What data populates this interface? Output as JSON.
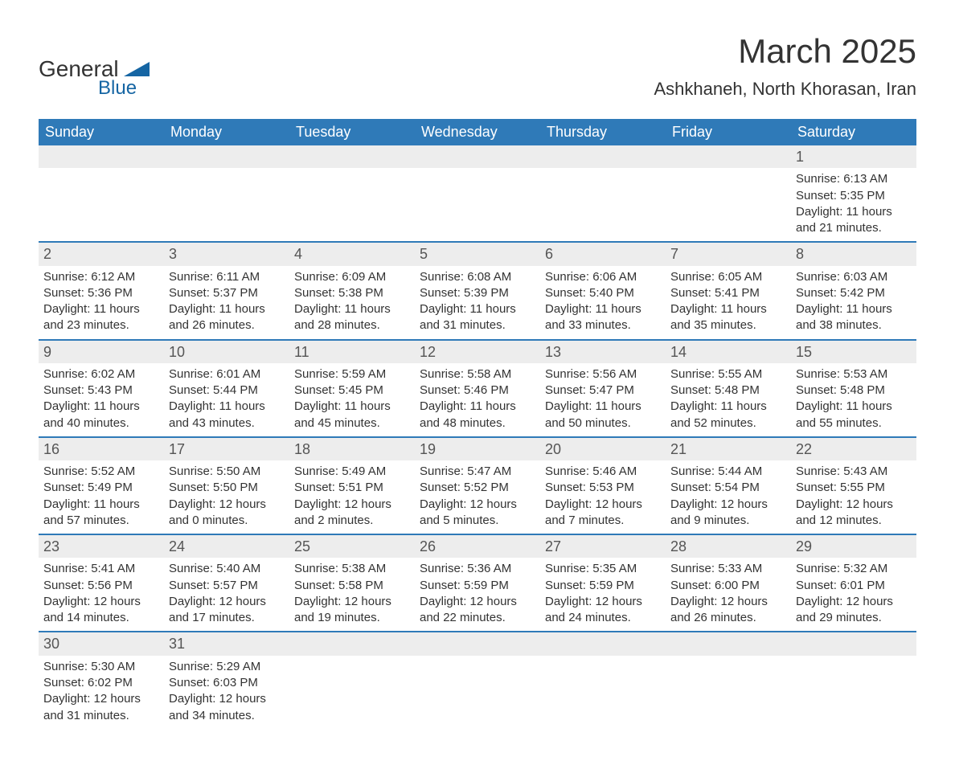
{
  "logo": {
    "text1": "General",
    "text2": "Blue",
    "accent_color": "#1565a3",
    "text_color": "#333333"
  },
  "header": {
    "title": "March 2025",
    "location": "Ashkhaneh, North Khorasan, Iran"
  },
  "colors": {
    "header_bg": "#2f7ab8",
    "header_text": "#ffffff",
    "daynum_bg": "#ededed",
    "row_border": "#2f7ab8",
    "body_text": "#333333",
    "background": "#ffffff"
  },
  "typography": {
    "title_fontsize": 42,
    "location_fontsize": 22,
    "th_fontsize": 18,
    "daynum_fontsize": 18,
    "cell_fontsize": 15
  },
  "calendar": {
    "type": "table",
    "columns": [
      "Sunday",
      "Monday",
      "Tuesday",
      "Wednesday",
      "Thursday",
      "Friday",
      "Saturday"
    ],
    "weeks": [
      [
        null,
        null,
        null,
        null,
        null,
        null,
        {
          "day": "1",
          "sunrise": "Sunrise: 6:13 AM",
          "sunset": "Sunset: 5:35 PM",
          "dl1": "Daylight: 11 hours",
          "dl2": "and 21 minutes."
        }
      ],
      [
        {
          "day": "2",
          "sunrise": "Sunrise: 6:12 AM",
          "sunset": "Sunset: 5:36 PM",
          "dl1": "Daylight: 11 hours",
          "dl2": "and 23 minutes."
        },
        {
          "day": "3",
          "sunrise": "Sunrise: 6:11 AM",
          "sunset": "Sunset: 5:37 PM",
          "dl1": "Daylight: 11 hours",
          "dl2": "and 26 minutes."
        },
        {
          "day": "4",
          "sunrise": "Sunrise: 6:09 AM",
          "sunset": "Sunset: 5:38 PM",
          "dl1": "Daylight: 11 hours",
          "dl2": "and 28 minutes."
        },
        {
          "day": "5",
          "sunrise": "Sunrise: 6:08 AM",
          "sunset": "Sunset: 5:39 PM",
          "dl1": "Daylight: 11 hours",
          "dl2": "and 31 minutes."
        },
        {
          "day": "6",
          "sunrise": "Sunrise: 6:06 AM",
          "sunset": "Sunset: 5:40 PM",
          "dl1": "Daylight: 11 hours",
          "dl2": "and 33 minutes."
        },
        {
          "day": "7",
          "sunrise": "Sunrise: 6:05 AM",
          "sunset": "Sunset: 5:41 PM",
          "dl1": "Daylight: 11 hours",
          "dl2": "and 35 minutes."
        },
        {
          "day": "8",
          "sunrise": "Sunrise: 6:03 AM",
          "sunset": "Sunset: 5:42 PM",
          "dl1": "Daylight: 11 hours",
          "dl2": "and 38 minutes."
        }
      ],
      [
        {
          "day": "9",
          "sunrise": "Sunrise: 6:02 AM",
          "sunset": "Sunset: 5:43 PM",
          "dl1": "Daylight: 11 hours",
          "dl2": "and 40 minutes."
        },
        {
          "day": "10",
          "sunrise": "Sunrise: 6:01 AM",
          "sunset": "Sunset: 5:44 PM",
          "dl1": "Daylight: 11 hours",
          "dl2": "and 43 minutes."
        },
        {
          "day": "11",
          "sunrise": "Sunrise: 5:59 AM",
          "sunset": "Sunset: 5:45 PM",
          "dl1": "Daylight: 11 hours",
          "dl2": "and 45 minutes."
        },
        {
          "day": "12",
          "sunrise": "Sunrise: 5:58 AM",
          "sunset": "Sunset: 5:46 PM",
          "dl1": "Daylight: 11 hours",
          "dl2": "and 48 minutes."
        },
        {
          "day": "13",
          "sunrise": "Sunrise: 5:56 AM",
          "sunset": "Sunset: 5:47 PM",
          "dl1": "Daylight: 11 hours",
          "dl2": "and 50 minutes."
        },
        {
          "day": "14",
          "sunrise": "Sunrise: 5:55 AM",
          "sunset": "Sunset: 5:48 PM",
          "dl1": "Daylight: 11 hours",
          "dl2": "and 52 minutes."
        },
        {
          "day": "15",
          "sunrise": "Sunrise: 5:53 AM",
          "sunset": "Sunset: 5:48 PM",
          "dl1": "Daylight: 11 hours",
          "dl2": "and 55 minutes."
        }
      ],
      [
        {
          "day": "16",
          "sunrise": "Sunrise: 5:52 AM",
          "sunset": "Sunset: 5:49 PM",
          "dl1": "Daylight: 11 hours",
          "dl2": "and 57 minutes."
        },
        {
          "day": "17",
          "sunrise": "Sunrise: 5:50 AM",
          "sunset": "Sunset: 5:50 PM",
          "dl1": "Daylight: 12 hours",
          "dl2": "and 0 minutes."
        },
        {
          "day": "18",
          "sunrise": "Sunrise: 5:49 AM",
          "sunset": "Sunset: 5:51 PM",
          "dl1": "Daylight: 12 hours",
          "dl2": "and 2 minutes."
        },
        {
          "day": "19",
          "sunrise": "Sunrise: 5:47 AM",
          "sunset": "Sunset: 5:52 PM",
          "dl1": "Daylight: 12 hours",
          "dl2": "and 5 minutes."
        },
        {
          "day": "20",
          "sunrise": "Sunrise: 5:46 AM",
          "sunset": "Sunset: 5:53 PM",
          "dl1": "Daylight: 12 hours",
          "dl2": "and 7 minutes."
        },
        {
          "day": "21",
          "sunrise": "Sunrise: 5:44 AM",
          "sunset": "Sunset: 5:54 PM",
          "dl1": "Daylight: 12 hours",
          "dl2": "and 9 minutes."
        },
        {
          "day": "22",
          "sunrise": "Sunrise: 5:43 AM",
          "sunset": "Sunset: 5:55 PM",
          "dl1": "Daylight: 12 hours",
          "dl2": "and 12 minutes."
        }
      ],
      [
        {
          "day": "23",
          "sunrise": "Sunrise: 5:41 AM",
          "sunset": "Sunset: 5:56 PM",
          "dl1": "Daylight: 12 hours",
          "dl2": "and 14 minutes."
        },
        {
          "day": "24",
          "sunrise": "Sunrise: 5:40 AM",
          "sunset": "Sunset: 5:57 PM",
          "dl1": "Daylight: 12 hours",
          "dl2": "and 17 minutes."
        },
        {
          "day": "25",
          "sunrise": "Sunrise: 5:38 AM",
          "sunset": "Sunset: 5:58 PM",
          "dl1": "Daylight: 12 hours",
          "dl2": "and 19 minutes."
        },
        {
          "day": "26",
          "sunrise": "Sunrise: 5:36 AM",
          "sunset": "Sunset: 5:59 PM",
          "dl1": "Daylight: 12 hours",
          "dl2": "and 22 minutes."
        },
        {
          "day": "27",
          "sunrise": "Sunrise: 5:35 AM",
          "sunset": "Sunset: 5:59 PM",
          "dl1": "Daylight: 12 hours",
          "dl2": "and 24 minutes."
        },
        {
          "day": "28",
          "sunrise": "Sunrise: 5:33 AM",
          "sunset": "Sunset: 6:00 PM",
          "dl1": "Daylight: 12 hours",
          "dl2": "and 26 minutes."
        },
        {
          "day": "29",
          "sunrise": "Sunrise: 5:32 AM",
          "sunset": "Sunset: 6:01 PM",
          "dl1": "Daylight: 12 hours",
          "dl2": "and 29 minutes."
        }
      ],
      [
        {
          "day": "30",
          "sunrise": "Sunrise: 5:30 AM",
          "sunset": "Sunset: 6:02 PM",
          "dl1": "Daylight: 12 hours",
          "dl2": "and 31 minutes."
        },
        {
          "day": "31",
          "sunrise": "Sunrise: 5:29 AM",
          "sunset": "Sunset: 6:03 PM",
          "dl1": "Daylight: 12 hours",
          "dl2": "and 34 minutes."
        },
        null,
        null,
        null,
        null,
        null
      ]
    ]
  }
}
